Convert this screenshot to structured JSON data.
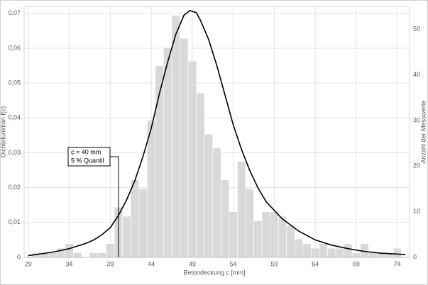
{
  "chart_data": {
    "type": "histogram",
    "xlabel": "Betondeckung c [mm]",
    "ylabel": "Dichtefunktion f(c)",
    "y2label": "Anzahl der Messwerte",
    "xlim": [
      28.5,
      75.5
    ],
    "xticks": [
      29,
      34,
      39,
      44,
      49,
      54,
      59,
      64,
      69,
      74
    ],
    "ylim": [
      0,
      0.072
    ],
    "yticks": [
      0,
      {
        "value": 0.01,
        "label": "0,01"
      },
      {
        "value": 0.02,
        "label": "0,02"
      },
      {
        "value": 0.03,
        "label": "0,03"
      },
      {
        "value": 0.04,
        "label": "0,04"
      },
      {
        "value": 0.05,
        "label": "0,05"
      },
      {
        "value": 0.06,
        "label": "0,06"
      },
      {
        "value": 0.07,
        "label": "0,07"
      }
    ],
    "y2lim": [
      0,
      55
    ],
    "y2ticks": [
      0,
      10,
      20,
      30,
      40,
      50
    ],
    "grid": true,
    "bins": [
      29.5,
      30.5,
      31.5,
      32.5,
      33.5,
      34.5,
      35.5,
      36.5,
      37.5,
      38.5,
      39.5,
      40.5,
      41.5,
      42.5,
      43.5,
      44.5,
      45.5,
      46.5,
      47.5,
      48.5,
      49.5,
      50.5,
      51.5,
      52.5,
      53.5,
      54.5,
      55.5,
      56.5,
      57.5,
      58.5,
      59.5,
      60.5,
      61.5,
      62.5,
      63.5,
      64.5,
      65.5,
      66.5,
      67.5,
      68.5,
      69.5,
      70.5,
      71.5,
      72.5,
      73.5,
      74.5
    ],
    "values": [
      1,
      1,
      1,
      2,
      3,
      1,
      0,
      1,
      1,
      3,
      11,
      9,
      17,
      15,
      30,
      42,
      46,
      53,
      48,
      43,
      36,
      27,
      24,
      17,
      10,
      21,
      15,
      8,
      10,
      10,
      9,
      7,
      4,
      3,
      2,
      3,
      2,
      2,
      3,
      1,
      3,
      1,
      1,
      1,
      2
    ],
    "color": "#d9d9d9",
    "axis": "y2",
    "curve": {
      "type": "line",
      "color": "#000000",
      "x": [
        29,
        32,
        34,
        36,
        37,
        38,
        39,
        40,
        41,
        42,
        43,
        44,
        45,
        46,
        47,
        48,
        48.7,
        49.5,
        50,
        51,
        52,
        53,
        54,
        55,
        56,
        57,
        58,
        60,
        62,
        64,
        66,
        68,
        70,
        72,
        75
      ],
      "values": [
        0.0005,
        0.0015,
        0.0025,
        0.004,
        0.005,
        0.0065,
        0.0085,
        0.012,
        0.0165,
        0.022,
        0.029,
        0.037,
        0.047,
        0.056,
        0.064,
        0.0695,
        0.0708,
        0.0702,
        0.068,
        0.0625,
        0.055,
        0.0465,
        0.038,
        0.031,
        0.025,
        0.02,
        0.016,
        0.011,
        0.0075,
        0.005,
        0.0035,
        0.0025,
        0.0017,
        0.0012,
        0.0008
      ]
    },
    "annotation": {
      "lines": [
        "c = 40 mm",
        "5 % Quantil"
      ],
      "x": 40
    }
  }
}
